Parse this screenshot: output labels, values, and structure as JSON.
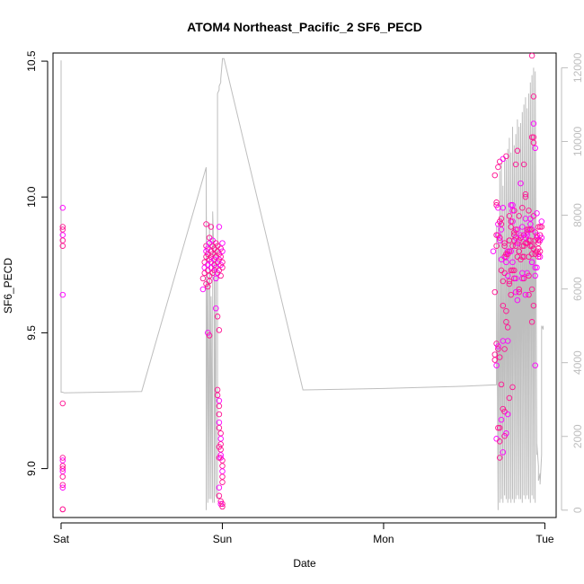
{
  "chart_data": {
    "type": "scatter",
    "title": "ATOM4 Northeast_Pacific_2 SF6_PECD",
    "xlabel": "Date",
    "ylabel": "SF6_PECD",
    "x_ticks": [
      "Sat",
      "Sun",
      "Mon",
      "Tue"
    ],
    "xlim_days": [
      -0.05,
      3.07
    ],
    "ylim": [
      8.82,
      10.53
    ],
    "y_ticks": [
      "9.0",
      "9.5",
      "10.0",
      "10.5"
    ],
    "y2lim": [
      -200,
      12400
    ],
    "y2_ticks": [
      "0",
      "2000",
      "4000",
      "6000",
      "8000",
      "10000",
      "12000"
    ],
    "point_color": "#ff1493",
    "point_color_alt": "#ff00ff",
    "line_color": "#bebebe",
    "series": [
      {
        "kind": "points",
        "x_days": [
          0.01,
          0.01,
          0.01,
          0.01,
          0.01,
          0.01,
          0.01,
          0.01,
          0.01,
          0.01,
          0.01,
          0.01,
          0.01,
          0.01,
          0.01,
          0.01,
          0.01,
          0.01,
          0.88,
          0.88,
          0.89,
          0.89,
          0.89,
          0.9,
          0.9,
          0.9,
          0.9,
          0.91,
          0.91,
          0.91,
          0.91,
          0.92,
          0.92,
          0.92,
          0.92,
          0.92,
          0.93,
          0.93,
          0.93,
          0.93,
          0.94,
          0.94,
          0.94,
          0.94,
          0.95,
          0.95,
          0.95,
          0.95,
          0.96,
          0.96,
          0.96,
          0.96,
          0.97,
          0.97,
          0.97,
          0.97,
          0.98,
          0.98,
          0.98,
          0.99,
          0.99,
          0.99,
          0.99,
          1.0,
          1.0,
          1.0,
          1.0,
          0.9,
          0.91,
          0.91,
          0.92,
          0.93,
          0.96,
          0.97,
          0.98,
          0.98,
          0.97,
          0.97,
          0.98,
          0.98,
          0.98,
          0.98,
          0.98,
          0.99,
          0.99,
          0.99,
          0.99,
          0.99,
          1.0,
          1.0,
          1.0,
          1.0,
          1.0,
          0.98,
          0.98,
          0.99,
          0.99,
          1.0,
          1.0,
          0.99,
          0.98,
          0.98,
          2.68,
          2.69,
          2.69,
          2.7,
          2.7,
          2.7,
          2.71,
          2.71,
          2.71,
          2.72,
          2.72,
          2.72,
          2.73,
          2.73,
          2.74,
          2.74,
          2.75,
          2.75,
          2.76,
          2.76,
          2.77,
          2.77,
          2.78,
          2.78,
          2.79,
          2.79,
          2.8,
          2.8,
          2.81,
          2.81,
          2.82,
          2.82,
          2.83,
          2.83,
          2.84,
          2.84,
          2.85,
          2.85,
          2.86,
          2.86,
          2.87,
          2.87,
          2.88,
          2.88,
          2.89,
          2.89,
          2.9,
          2.9,
          2.91,
          2.91,
          2.92,
          2.92,
          2.93,
          2.93,
          2.94,
          2.94,
          2.95,
          2.95,
          2.96,
          2.96,
          2.97,
          2.97,
          2.98,
          2.98,
          2.69,
          2.7,
          2.71,
          2.72,
          2.73,
          2.74,
          2.75,
          2.76,
          2.77,
          2.78,
          2.79,
          2.8,
          2.81,
          2.82,
          2.83,
          2.84,
          2.85,
          2.86,
          2.87,
          2.88,
          2.89,
          2.9,
          2.91,
          2.92,
          2.93,
          2.94,
          2.95,
          2.96,
          2.97,
          2.98,
          2.69,
          2.7,
          2.71,
          2.72,
          2.73,
          2.74,
          2.75,
          2.76,
          2.77,
          2.78,
          2.79,
          2.8,
          2.81,
          2.82,
          2.83,
          2.84,
          2.85,
          2.86,
          2.87,
          2.88,
          2.89,
          2.9,
          2.91,
          2.92,
          2.93,
          2.94,
          2.95,
          2.96,
          2.97,
          2.7,
          2.71,
          2.72,
          2.73,
          2.74,
          2.75,
          2.76,
          2.78,
          2.8,
          2.82,
          2.84,
          2.86,
          2.88,
          2.9,
          2.92,
          2.94,
          2.96,
          2.7,
          2.71,
          2.72,
          2.73,
          2.74,
          2.75,
          2.76,
          2.77,
          2.78,
          2.79,
          2.8,
          2.81,
          2.72,
          2.73,
          2.74,
          2.75,
          2.76,
          2.77,
          2.78,
          2.79,
          2.8,
          2.81,
          2.82,
          2.83,
          2.84,
          2.85,
          2.86,
          2.87,
          2.88,
          2.89,
          2.9,
          2.91,
          2.92,
          2.93,
          2.94,
          2.95,
          2.96,
          2.97,
          2.92,
          2.93,
          2.93,
          2.92,
          2.93,
          2.94,
          2.92
        ],
        "y": [
          9.96,
          9.89,
          9.88,
          9.86,
          9.84,
          9.82,
          9.64,
          9.24,
          9.04,
          9.03,
          9.01,
          9.0,
          8.99,
          8.97,
          8.94,
          8.93,
          8.85,
          8.85,
          9.66,
          9.7,
          9.72,
          9.74,
          9.76,
          9.78,
          9.8,
          9.68,
          9.82,
          9.75,
          9.73,
          9.79,
          9.81,
          9.77,
          9.71,
          9.83,
          9.85,
          9.69,
          9.74,
          9.78,
          9.8,
          9.76,
          9.72,
          9.82,
          9.84,
          9.79,
          9.73,
          9.77,
          9.81,
          9.75,
          9.7,
          9.83,
          9.78,
          9.74,
          9.76,
          9.8,
          9.72,
          9.82,
          9.79,
          9.77,
          9.73,
          9.81,
          9.75,
          9.71,
          9.78,
          9.83,
          9.76,
          9.74,
          9.8,
          9.9,
          9.67,
          9.5,
          9.49,
          9.89,
          9.59,
          9.56,
          9.51,
          9.89,
          9.29,
          9.27,
          9.25,
          9.23,
          9.2,
          9.17,
          9.15,
          9.13,
          9.11,
          9.09,
          9.07,
          9.05,
          9.03,
          9.01,
          8.99,
          8.97,
          8.95,
          8.93,
          8.9,
          8.88,
          8.87,
          8.86,
          8.87,
          9.04,
          9.04,
          9.08,
          9.8,
          10.08,
          9.42,
          9.38,
          9.82,
          9.97,
          9.86,
          10.11,
          9.44,
          9.84,
          10.13,
          9.41,
          9.88,
          9.73,
          9.6,
          10.14,
          9.21,
          9.83,
          9.78,
          10.15,
          9.52,
          9.8,
          9.69,
          9.84,
          9.97,
          9.73,
          9.82,
          9.91,
          9.87,
          9.95,
          9.85,
          10.12,
          10.17,
          9.88,
          9.93,
          9.8,
          10.05,
          9.77,
          9.96,
          9.72,
          9.82,
          10.12,
          9.92,
          10.01,
          9.88,
          9.86,
          9.78,
          9.95,
          9.9,
          9.84,
          9.82,
          9.76,
          9.93,
          10.22,
          10.18,
          9.87,
          9.85,
          9.94,
          9.81,
          9.79,
          9.84,
          9.86,
          9.89,
          9.91,
          9.4,
          9.46,
          9.45,
          9.15,
          9.31,
          9.06,
          9.44,
          9.58,
          9.47,
          9.8,
          9.91,
          9.76,
          9.7,
          9.82,
          9.83,
          9.66,
          9.85,
          9.89,
          9.78,
          9.83,
          9.87,
          9.84,
          9.82,
          9.88,
          9.81,
          9.84,
          9.86,
          9.78,
          9.8,
          9.85,
          9.65,
          9.86,
          9.96,
          9.04,
          9.9,
          9.47,
          9.78,
          9.54,
          9.2,
          9.84,
          9.64,
          9.95,
          9.73,
          9.88,
          9.62,
          9.8,
          9.85,
          9.7,
          9.86,
          10.0,
          9.72,
          9.64,
          9.88,
          9.76,
          9.6,
          9.79,
          9.74,
          9.83,
          9.89,
          9.11,
          9.15,
          9.1,
          9.18,
          9.22,
          9.12,
          9.13,
          9.26,
          9.3,
          9.7,
          9.65,
          9.78,
          9.64,
          9.71,
          9.66,
          9.71,
          9.89,
          9.98,
          9.9,
          9.91,
          9.92,
          9.96,
          9.82,
          9.79,
          9.71,
          9.93,
          9.89,
          9.97,
          9.86,
          9.85,
          9.77,
          9.69,
          9.72,
          9.76,
          9.79,
          9.68,
          9.8,
          9.73,
          9.84,
          9.65,
          9.78,
          9.84,
          9.86,
          9.82,
          9.7,
          9.85,
          9.83,
          9.88,
          9.92,
          9.79,
          9.81,
          9.74,
          9.8,
          9.84,
          9.78,
          10.52,
          10.37,
          10.27,
          10.22,
          10.2,
          9.38,
          9.54
        ]
      },
      {
        "kind": "line",
        "x_days": [
          0.0,
          0.0,
          0.01,
          0.01,
          0.01,
          0.01,
          0.02,
          0.5,
          0.9,
          0.9,
          0.9,
          0.91,
          0.91,
          0.92,
          0.92,
          0.93,
          0.93,
          0.94,
          0.94,
          0.95,
          0.95,
          0.96,
          0.96,
          0.97,
          0.97,
          0.98,
          0.98,
          0.99,
          0.99,
          1.0,
          1.0,
          1.01,
          1.5,
          2.0,
          2.5,
          2.7,
          2.7,
          2.71,
          2.71,
          2.72,
          2.72,
          2.73,
          2.73,
          2.74,
          2.74,
          2.75,
          2.75,
          2.76,
          2.76,
          2.77,
          2.77,
          2.78,
          2.78,
          2.79,
          2.79,
          2.8,
          2.8,
          2.81,
          2.81,
          2.82,
          2.82,
          2.83,
          2.83,
          2.84,
          2.84,
          2.85,
          2.85,
          2.86,
          2.86,
          2.87,
          2.87,
          2.88,
          2.88,
          2.89,
          2.89,
          2.9,
          2.9,
          2.91,
          2.91,
          2.92,
          2.92,
          2.93,
          2.93,
          2.94,
          2.94,
          2.95,
          2.95,
          2.96,
          2.96,
          2.97,
          2.97,
          2.98,
          2.98,
          2.99,
          2.99
        ],
        "y2": [
          12200,
          3200,
          3200,
          3200,
          3200,
          3200,
          3180,
          3220,
          9300,
          0,
          8700,
          200,
          6200,
          300,
          7800,
          300,
          5800,
          200,
          8100,
          6500,
          200,
          7200,
          400,
          300,
          11300,
          11400,
          11500,
          11600,
          11700,
          12200,
          12250,
          12250,
          3260,
          3300,
          3360,
          3400,
          7700,
          0,
          7800,
          200,
          9200,
          300,
          9400,
          200,
          8800,
          400,
          9600,
          300,
          9500,
          200,
          9800,
          300,
          10100,
          200,
          9700,
          300,
          10400,
          200,
          9900,
          300,
          10200,
          400,
          10600,
          300,
          10400,
          300,
          10500,
          200,
          10800,
          400,
          11000,
          300,
          11200,
          400,
          10900,
          300,
          11300,
          200,
          11600,
          400,
          11800,
          300,
          12000,
          200,
          11900,
          1500,
          1800,
          1200,
          800,
          1000,
          700,
          1500,
          5000,
          4900,
          5000
        ]
      }
    ]
  }
}
